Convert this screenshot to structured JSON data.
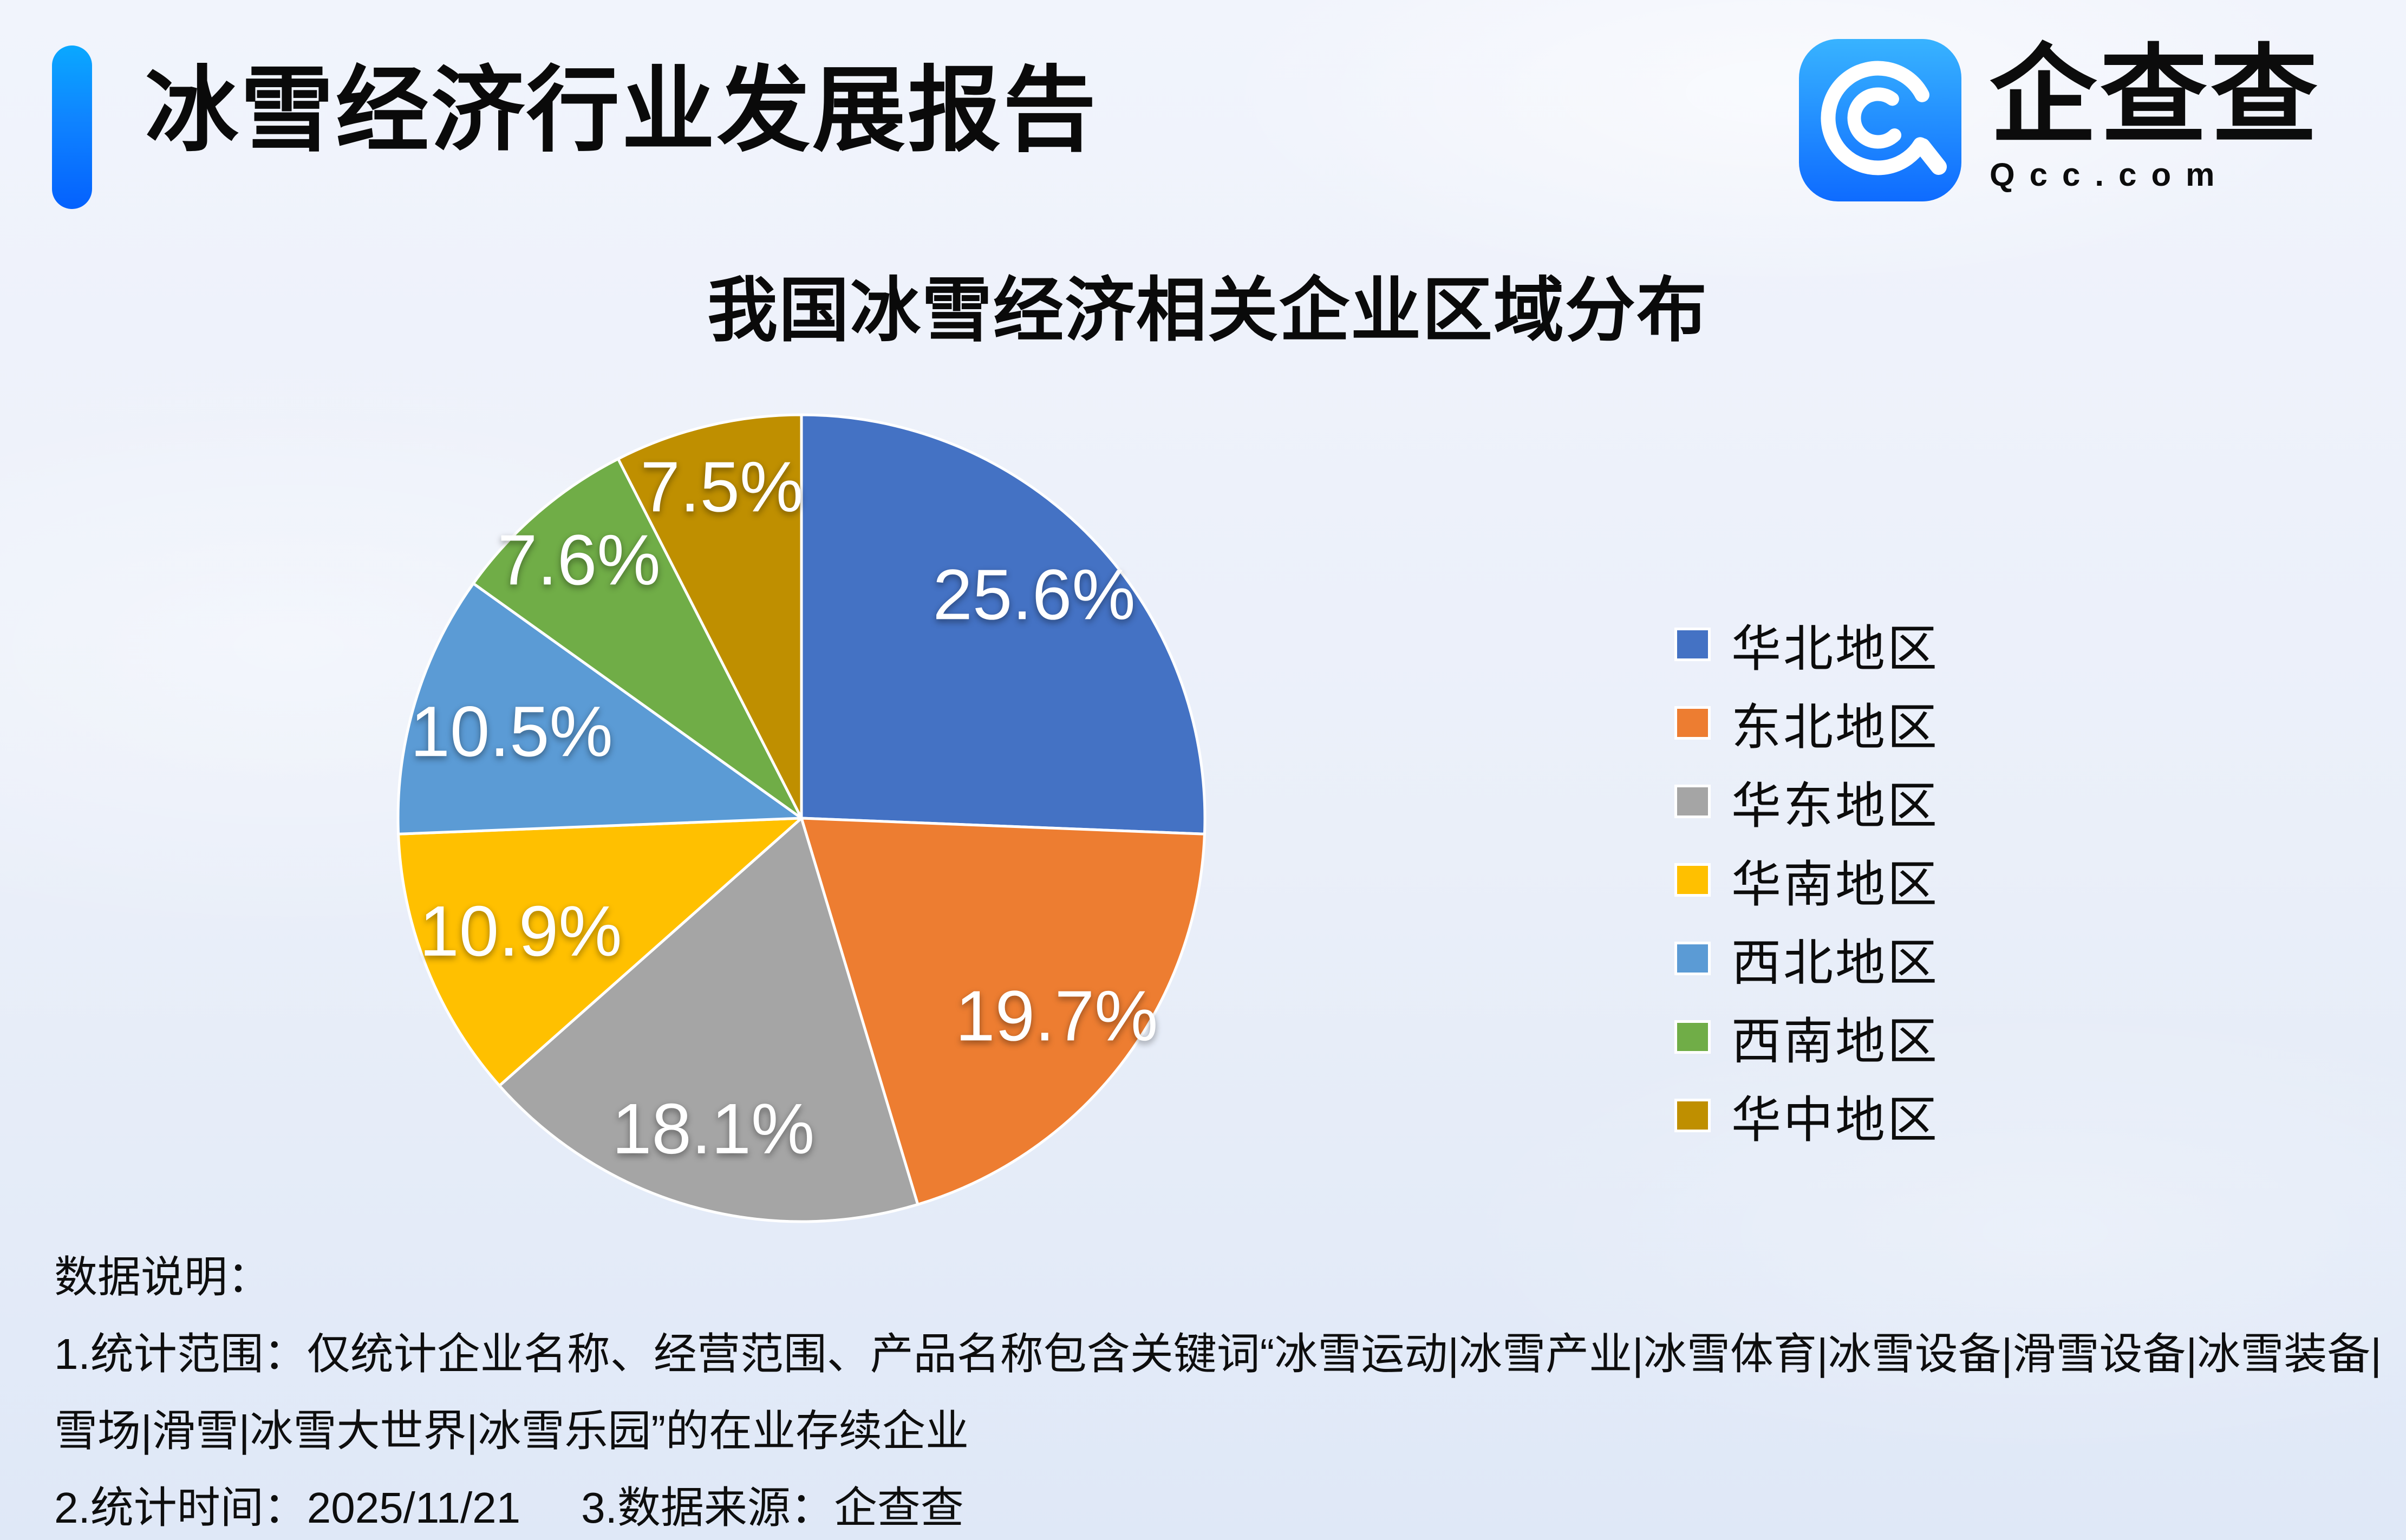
{
  "header": {
    "title": "冰雪经济行业发展报告"
  },
  "logo": {
    "name": "企查查",
    "domain": "Qcc.com",
    "icon": "qcc-magnifier-icon",
    "icon_gradient_top": "#38B3FF",
    "icon_gradient_bottom": "#0E6BFF"
  },
  "chart_data": {
    "type": "pie",
    "title": "我国冰雪经济相关企业区域分布",
    "label_format": "percent",
    "direction": "clockwise",
    "start_angle_deg": 0,
    "legend_position": "right",
    "slices": [
      {
        "label": "华北地区",
        "value": 25.6,
        "color": "#4472C4"
      },
      {
        "label": "东北地区",
        "value": 19.7,
        "color": "#ED7D31"
      },
      {
        "label": "华东地区",
        "value": 18.1,
        "color": "#A5A5A5"
      },
      {
        "label": "华南地区",
        "value": 10.9,
        "color": "#FFC000"
      },
      {
        "label": "西北地区",
        "value": 10.5,
        "color": "#5B9BD5"
      },
      {
        "label": "西南地区",
        "value": 7.6,
        "color": "#70AD47"
      },
      {
        "label": "华中地区",
        "value": 7.5,
        "color": "#BF8F00"
      }
    ]
  },
  "footnotes": {
    "heading": "数据说明：",
    "line1": "1.统计范围：仅统计企业名称、经营范围、产品名称包含关键词“冰雪运动|冰雪产业|冰雪体育|冰雪设备|滑雪设备|冰雪装备|",
    "line2": "雪场|滑雪|冰雪大世界|冰雪乐园”的在业存续企业",
    "stat_time": "2.统计时间：2025/11/21",
    "source": "3.数据来源：企查查"
  },
  "colors": {
    "accent_bar_top": "#0AA8FF",
    "accent_bar_bottom": "#0461FE",
    "background": "#EAEFF9",
    "pie_separator": "#FFFFFF"
  }
}
